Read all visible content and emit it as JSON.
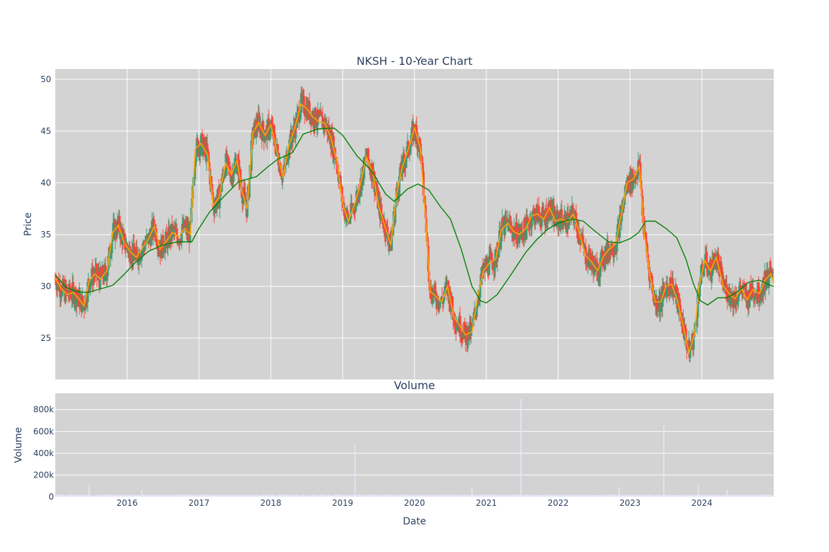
{
  "chart_data": [
    {
      "type": "candlestick",
      "title": "NKSH - 10-Year Chart",
      "ylabel": "Price",
      "ylim": [
        21,
        51
      ],
      "yticks": [
        25,
        30,
        35,
        40,
        45,
        50
      ],
      "xlim": [
        2015.0,
        2025.0
      ],
      "xticks": [
        {
          "value": 2016,
          "label": "2016"
        },
        {
          "value": 2017,
          "label": "2017"
        },
        {
          "value": 2018,
          "label": "2018"
        },
        {
          "value": 2019,
          "label": "2019"
        },
        {
          "value": 2020,
          "label": "2020"
        },
        {
          "value": 2021,
          "label": "2021"
        },
        {
          "value": 2022,
          "label": "2022"
        },
        {
          "value": 2023,
          "label": "2023"
        },
        {
          "value": 2024,
          "label": "2024"
        }
      ],
      "grid": true,
      "colors": {
        "up": "#3d9970",
        "down": "#ff4136",
        "ma_short": "#ffa500",
        "ma_long": "#008000",
        "plot_bg": "#d3d3d3",
        "grid": "#ffffff"
      },
      "close_series": [
        [
          2015.0,
          30.8
        ],
        [
          2015.08,
          29.8
        ],
        [
          2015.17,
          29.2
        ],
        [
          2015.25,
          29.4
        ],
        [
          2015.33,
          28.8
        ],
        [
          2015.4,
          28.1
        ],
        [
          2015.47,
          30.5
        ],
        [
          2015.55,
          31.2
        ],
        [
          2015.63,
          30.7
        ],
        [
          2015.72,
          31.5
        ],
        [
          2015.8,
          35.2
        ],
        [
          2015.88,
          35.9
        ],
        [
          2015.96,
          34.2
        ],
        [
          2016.05,
          33.3
        ],
        [
          2016.13,
          32.8
        ],
        [
          2016.22,
          33.8
        ],
        [
          2016.3,
          34.6
        ],
        [
          2016.38,
          35.8
        ],
        [
          2016.46,
          33.6
        ],
        [
          2016.55,
          34.4
        ],
        [
          2016.63,
          35.2
        ],
        [
          2016.72,
          34.8
        ],
        [
          2016.8,
          35.6
        ],
        [
          2016.88,
          35.0
        ],
        [
          2016.95,
          43.3
        ],
        [
          2017.03,
          43.8
        ],
        [
          2017.12,
          42.7
        ],
        [
          2017.2,
          37.8
        ],
        [
          2017.28,
          38.6
        ],
        [
          2017.37,
          41.9
        ],
        [
          2017.45,
          40.8
        ],
        [
          2017.53,
          42.2
        ],
        [
          2017.6,
          39.2
        ],
        [
          2017.67,
          37.5
        ],
        [
          2017.75,
          44.8
        ],
        [
          2017.83,
          45.8
        ],
        [
          2017.92,
          44.6
        ],
        [
          2018.0,
          45.6
        ],
        [
          2018.08,
          43.2
        ],
        [
          2018.17,
          40.5
        ],
        [
          2018.25,
          43.6
        ],
        [
          2018.33,
          45.2
        ],
        [
          2018.42,
          47.6
        ],
        [
          2018.5,
          47.2
        ],
        [
          2018.58,
          46.4
        ],
        [
          2018.67,
          45.9
        ],
        [
          2018.75,
          45.8
        ],
        [
          2018.83,
          44.5
        ],
        [
          2018.92,
          42.1
        ],
        [
          2019.0,
          38.0
        ],
        [
          2019.08,
          36.3
        ],
        [
          2019.17,
          38.0
        ],
        [
          2019.25,
          40.0
        ],
        [
          2019.33,
          42.5
        ],
        [
          2019.42,
          41.0
        ],
        [
          2019.5,
          37.8
        ],
        [
          2019.58,
          36.0
        ],
        [
          2019.67,
          34.0
        ],
        [
          2019.75,
          38.9
        ],
        [
          2019.83,
          41.5
        ],
        [
          2019.92,
          43.4
        ],
        [
          2020.0,
          45.3
        ],
        [
          2020.08,
          43.4
        ],
        [
          2020.15,
          37.0
        ],
        [
          2020.22,
          29.5
        ],
        [
          2020.3,
          29.0
        ],
        [
          2020.38,
          28.5
        ],
        [
          2020.46,
          30.0
        ],
        [
          2020.55,
          27.0
        ],
        [
          2020.63,
          26.2
        ],
        [
          2020.71,
          25.3
        ],
        [
          2020.8,
          25.6
        ],
        [
          2020.88,
          29.0
        ],
        [
          2020.96,
          31.5
        ],
        [
          2021.05,
          32.3
        ],
        [
          2021.13,
          32.6
        ],
        [
          2021.21,
          35.5
        ],
        [
          2021.3,
          36.1
        ],
        [
          2021.38,
          35.3
        ],
        [
          2021.46,
          35.0
        ],
        [
          2021.55,
          35.6
        ],
        [
          2021.63,
          36.8
        ],
        [
          2021.71,
          37.0
        ],
        [
          2021.8,
          36.5
        ],
        [
          2021.88,
          37.6
        ],
        [
          2021.96,
          36.3
        ],
        [
          2022.05,
          36.5
        ],
        [
          2022.13,
          36.2
        ],
        [
          2022.21,
          37.0
        ],
        [
          2022.3,
          35.0
        ],
        [
          2022.38,
          33.0
        ],
        [
          2022.46,
          32.4
        ],
        [
          2022.55,
          31.5
        ],
        [
          2022.63,
          32.9
        ],
        [
          2022.71,
          33.6
        ],
        [
          2022.8,
          34.1
        ],
        [
          2022.88,
          37.0
        ],
        [
          2022.96,
          40.0
        ],
        [
          2023.05,
          40.4
        ],
        [
          2023.13,
          41.6
        ],
        [
          2023.2,
          35.0
        ],
        [
          2023.28,
          31.0
        ],
        [
          2023.35,
          28.5
        ],
        [
          2023.43,
          28.5
        ],
        [
          2023.5,
          30.0
        ],
        [
          2023.58,
          30.2
        ],
        [
          2023.66,
          28.6
        ],
        [
          2023.74,
          26.2
        ],
        [
          2023.82,
          23.6
        ],
        [
          2023.9,
          25.4
        ],
        [
          2023.96,
          30.0
        ],
        [
          2024.04,
          32.5
        ],
        [
          2024.12,
          31.5
        ],
        [
          2024.2,
          32.8
        ],
        [
          2024.3,
          30.0
        ],
        [
          2024.38,
          29.3
        ],
        [
          2024.46,
          28.8
        ],
        [
          2024.55,
          29.8
        ],
        [
          2024.63,
          28.7
        ],
        [
          2024.71,
          29.7
        ],
        [
          2024.8,
          29.3
        ],
        [
          2024.88,
          30.6
        ],
        [
          2024.96,
          31.2
        ],
        [
          2025.0,
          30.3
        ]
      ],
      "ma_long_series": [
        [
          2015.0,
          31.1
        ],
        [
          2015.15,
          29.9
        ],
        [
          2015.3,
          29.5
        ],
        [
          2015.45,
          29.4
        ],
        [
          2015.6,
          29.7
        ],
        [
          2015.8,
          30.1
        ],
        [
          2015.95,
          31.1
        ],
        [
          2016.1,
          32.2
        ],
        [
          2016.3,
          33.4
        ],
        [
          2016.5,
          34.0
        ],
        [
          2016.7,
          34.3
        ],
        [
          2016.9,
          34.3
        ],
        [
          2017.0,
          35.6
        ],
        [
          2017.15,
          37.2
        ],
        [
          2017.35,
          38.7
        ],
        [
          2017.55,
          40.1
        ],
        [
          2017.8,
          40.6
        ],
        [
          2017.95,
          41.5
        ],
        [
          2018.1,
          42.3
        ],
        [
          2018.3,
          42.9
        ],
        [
          2018.45,
          44.7
        ],
        [
          2018.65,
          45.2
        ],
        [
          2018.88,
          45.3
        ],
        [
          2019.0,
          44.6
        ],
        [
          2019.2,
          42.6
        ],
        [
          2019.4,
          41.2
        ],
        [
          2019.6,
          38.9
        ],
        [
          2019.72,
          38.2
        ],
        [
          2019.9,
          39.4
        ],
        [
          2020.05,
          39.9
        ],
        [
          2020.2,
          39.3
        ],
        [
          2020.35,
          37.8
        ],
        [
          2020.5,
          36.5
        ],
        [
          2020.65,
          33.6
        ],
        [
          2020.8,
          30.0
        ],
        [
          2020.92,
          28.6
        ],
        [
          2021.0,
          28.4
        ],
        [
          2021.15,
          29.2
        ],
        [
          2021.35,
          31.2
        ],
        [
          2021.55,
          33.3
        ],
        [
          2021.7,
          34.5
        ],
        [
          2021.85,
          35.5
        ],
        [
          2022.0,
          36.1
        ],
        [
          2022.2,
          36.5
        ],
        [
          2022.35,
          36.3
        ],
        [
          2022.5,
          35.4
        ],
        [
          2022.7,
          34.3
        ],
        [
          2022.85,
          34.2
        ],
        [
          2023.0,
          34.6
        ],
        [
          2023.12,
          35.2
        ],
        [
          2023.22,
          36.3
        ],
        [
          2023.35,
          36.3
        ],
        [
          2023.5,
          35.6
        ],
        [
          2023.65,
          34.7
        ],
        [
          2023.78,
          32.6
        ],
        [
          2023.88,
          30.3
        ],
        [
          2023.98,
          28.6
        ],
        [
          2024.08,
          28.2
        ],
        [
          2024.22,
          28.9
        ],
        [
          2024.35,
          28.9
        ],
        [
          2024.5,
          29.5
        ],
        [
          2024.65,
          30.4
        ],
        [
          2024.8,
          30.6
        ],
        [
          2024.95,
          30.1
        ],
        [
          2025.0,
          30.0
        ]
      ]
    },
    {
      "type": "bar",
      "title": "Volume",
      "ylabel": "Volume",
      "xlabel": "Date",
      "ylim": [
        0,
        950000
      ],
      "yticks": [
        {
          "value": 0,
          "label": "0"
        },
        {
          "value": 200000,
          "label": "200k"
        },
        {
          "value": 400000,
          "label": "400k"
        },
        {
          "value": 600000,
          "label": "600k"
        },
        {
          "value": 800000,
          "label": "800k"
        }
      ],
      "base_volume": 15000,
      "spikes": [
        {
          "x": 2015.47,
          "volume": 110000
        },
        {
          "x": 2016.2,
          "volume": 65000
        },
        {
          "x": 2019.17,
          "volume": 480000
        },
        {
          "x": 2020.8,
          "volume": 95000
        },
        {
          "x": 2021.48,
          "volume": 900000
        },
        {
          "x": 2022.85,
          "volume": 90000
        },
        {
          "x": 2023.47,
          "volume": 650000
        },
        {
          "x": 2023.95,
          "volume": 110000
        },
        {
          "x": 2024.35,
          "volume": 70000
        }
      ],
      "bar_color": "#e6e6fa"
    }
  ]
}
